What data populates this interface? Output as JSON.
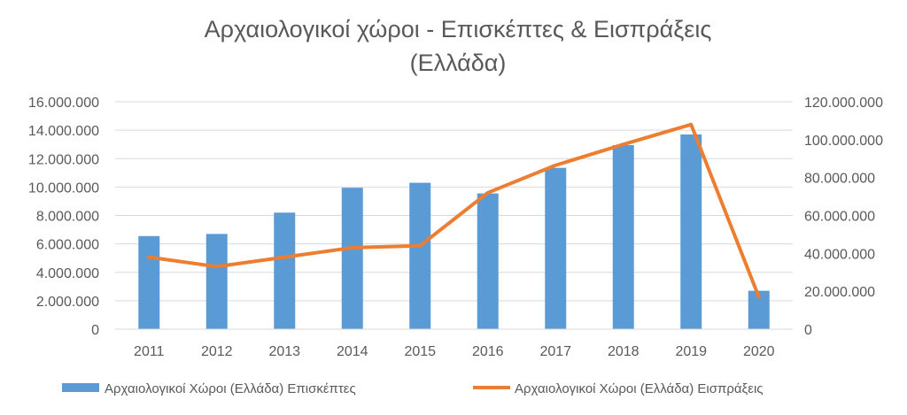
{
  "chart_data": {
    "type": "bar+line",
    "title_line1": "Αρχαιολογικοί χώροι - Επισκέπτες & Εισπράξεις",
    "title_line2": "(Ελλάδα)",
    "categories": [
      "2011",
      "2012",
      "2013",
      "2014",
      "2015",
      "2016",
      "2017",
      "2018",
      "2019",
      "2020"
    ],
    "series": [
      {
        "name": "Αρχαιολογικοί Χώροι (Ελλάδα) Επισκέπτες",
        "type": "bar",
        "axis": "left",
        "color": "#5B9BD5",
        "values": [
          6550000,
          6700000,
          8200000,
          9950000,
          10300000,
          9550000,
          11350000,
          12950000,
          13700000,
          2700000
        ]
      },
      {
        "name": "Αρχαιολογικοί Χώροι (Ελλάδα) Εισπράξεις",
        "type": "line",
        "axis": "right",
        "color": "#ED7D31",
        "values": [
          38000000,
          33000000,
          38000000,
          43000000,
          44000000,
          72000000,
          86500000,
          97500000,
          108000000,
          17000000
        ]
      }
    ],
    "left_axis": {
      "ylim": [
        0,
        16000000
      ],
      "ticks": [
        "0",
        "2.000.000",
        "4.000.000",
        "6.000.000",
        "8.000.000",
        "10.000.000",
        "12.000.000",
        "14.000.000",
        "16.000.000"
      ]
    },
    "right_axis": {
      "ylim": [
        0,
        120000000
      ],
      "ticks": [
        "0",
        "20.000.000",
        "40.000.000",
        "60.000.000",
        "80.000.000",
        "100.000.000",
        "120.000.000"
      ]
    },
    "grid": true,
    "legend_position": "bottom"
  }
}
